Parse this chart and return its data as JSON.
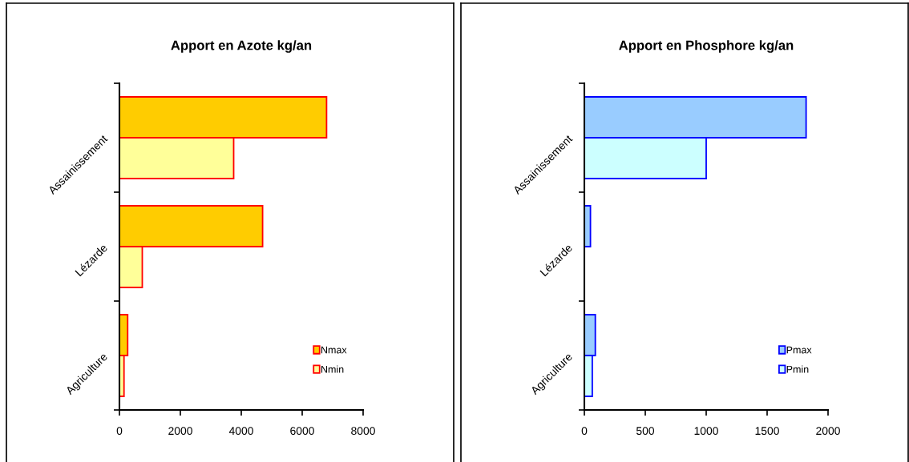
{
  "chart_data": [
    {
      "type": "bar",
      "orientation": "horizontal",
      "title": "Apport en Azote kg/an",
      "categories": [
        "Assainissement",
        "Lézarde",
        "Agriculture"
      ],
      "series": [
        {
          "name": "Nmax",
          "color": "#ffcc00",
          "values": [
            6800,
            4700,
            270
          ]
        },
        {
          "name": "Nmin",
          "color": "#ffff99",
          "values": [
            3750,
            750,
            150
          ]
        }
      ],
      "xlim": [
        0,
        8000
      ],
      "xticks": [
        0,
        2000,
        4000,
        6000,
        8000
      ],
      "grid": false,
      "legend": "bottom right"
    },
    {
      "type": "bar",
      "orientation": "horizontal",
      "title": "Apport en Phosphore kg/an",
      "categories": [
        "Assainissement",
        "Lézarde",
        "Agriculture"
      ],
      "series": [
        {
          "name": "Pmax",
          "color": "#99ccff",
          "values": [
            1820,
            50,
            90
          ]
        },
        {
          "name": "Pmin",
          "color": "#ccffff",
          "values": [
            1000,
            null,
            65
          ]
        }
      ],
      "xlim": [
        0,
        2000
      ],
      "xticks": [
        0,
        500,
        1000,
        1500,
        2000
      ],
      "grid": false,
      "legend": "bottom right"
    }
  ]
}
